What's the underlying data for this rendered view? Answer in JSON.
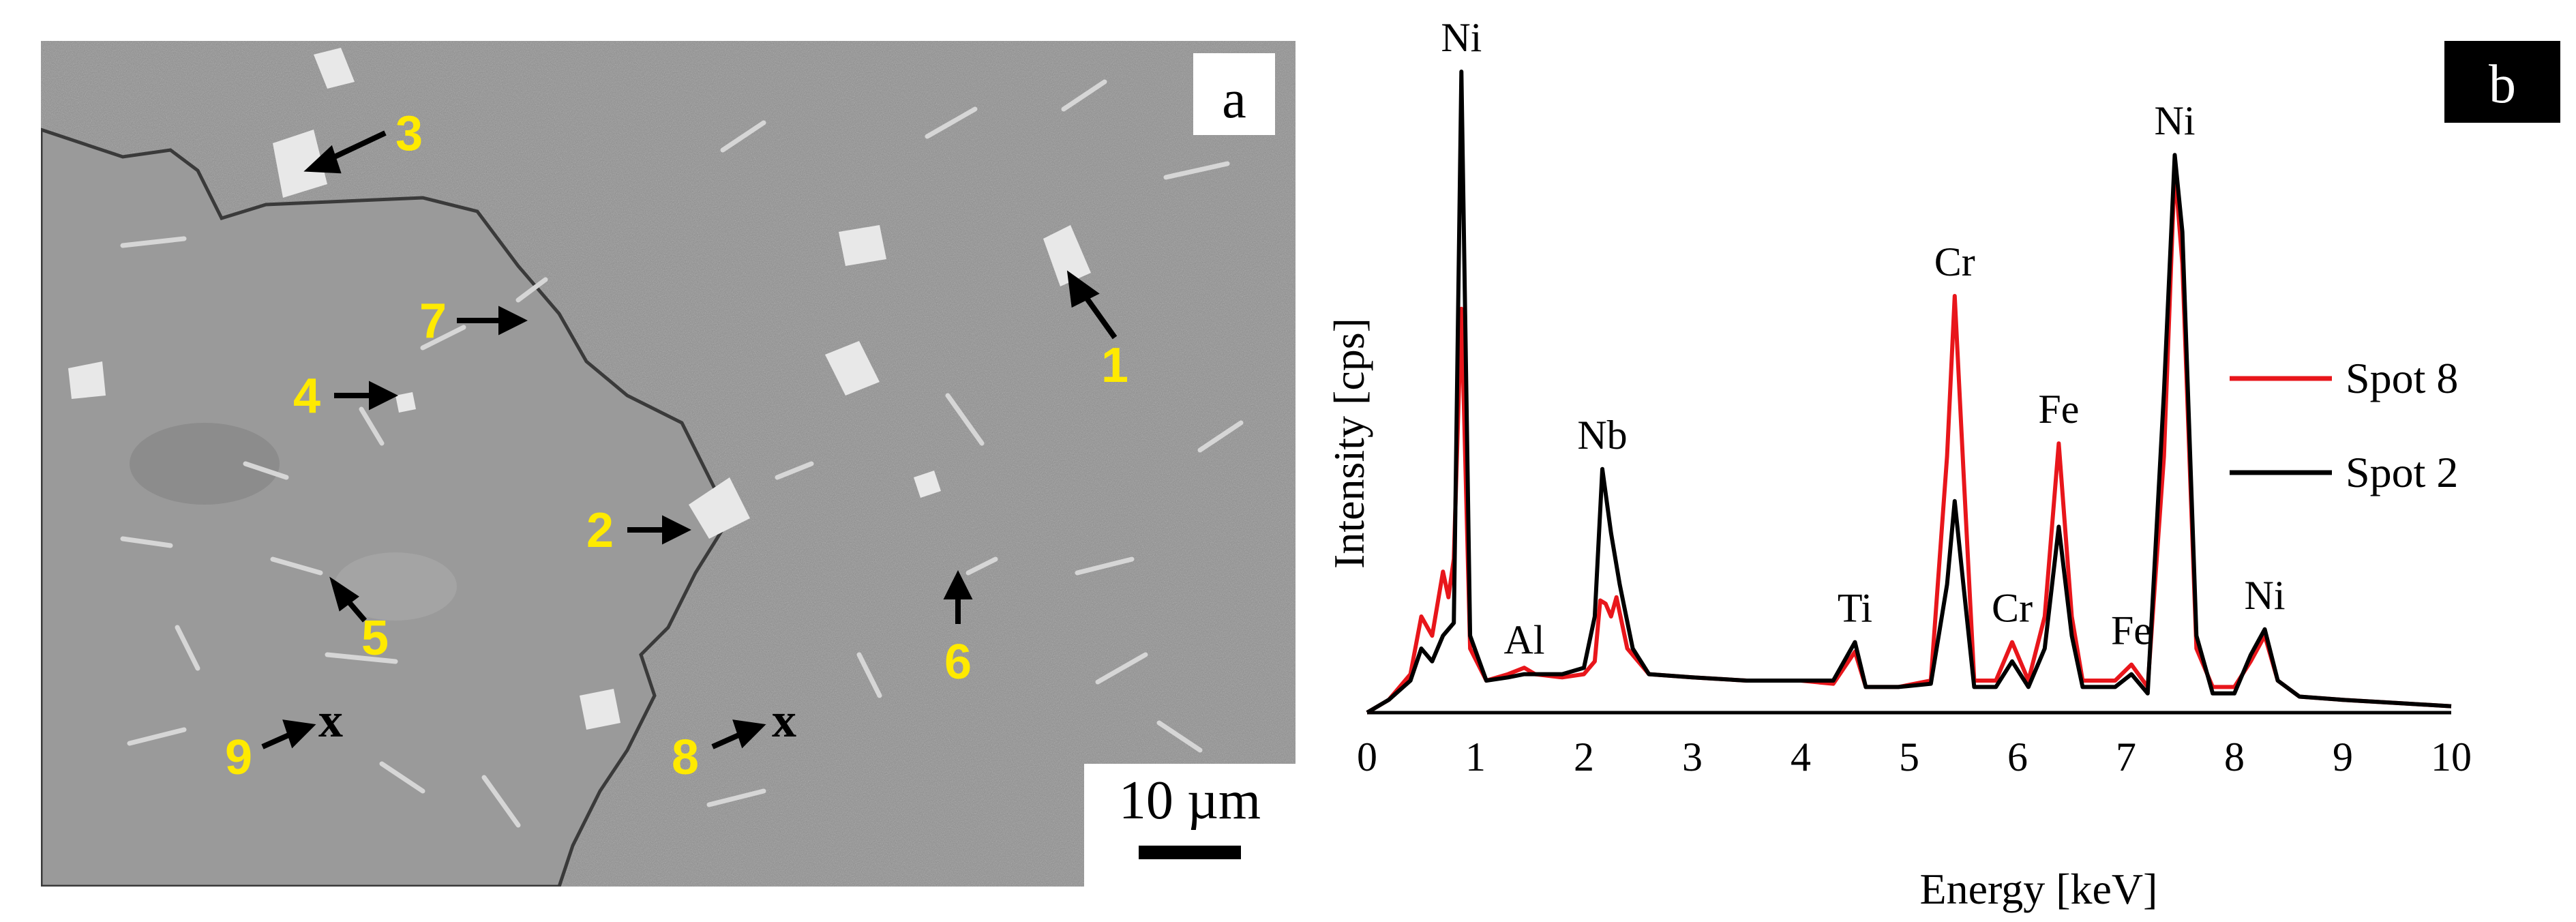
{
  "panel_a": {
    "panel_label": "a",
    "scale_bar_label": "10 µm",
    "markers": [
      {
        "label": "1"
      },
      {
        "label": "2"
      },
      {
        "label": "3"
      },
      {
        "label": "4"
      },
      {
        "label": "5"
      },
      {
        "label": "6"
      },
      {
        "label": "7"
      },
      {
        "label": "8"
      },
      {
        "label": "9"
      }
    ],
    "spot_mark": "x",
    "colors": {
      "marker_label": "#ffea00",
      "arrow": "#000000"
    }
  },
  "chart_data": {
    "type": "line",
    "panel_label": "b",
    "xlabel": "Energy [keV]",
    "ylabel": "Intensity [cps]",
    "xlim": [
      0,
      10
    ],
    "x_ticks": [
      "0",
      "1",
      "2",
      "3",
      "4",
      "5",
      "6",
      "7",
      "8",
      "9",
      "10"
    ],
    "ylim": [
      0,
      100
    ],
    "grid": false,
    "legend_position": "right",
    "series": [
      {
        "name": "Spot 8",
        "color": "#e8161b",
        "points": [
          [
            0.0,
            0
          ],
          [
            0.2,
            2
          ],
          [
            0.4,
            6
          ],
          [
            0.5,
            15
          ],
          [
            0.6,
            12
          ],
          [
            0.7,
            22
          ],
          [
            0.75,
            18
          ],
          [
            0.8,
            24
          ],
          [
            0.87,
            63
          ],
          [
            0.95,
            10
          ],
          [
            1.1,
            5
          ],
          [
            1.3,
            6
          ],
          [
            1.45,
            7
          ],
          [
            1.55,
            6
          ],
          [
            1.8,
            5.5
          ],
          [
            2.0,
            6
          ],
          [
            2.1,
            8
          ],
          [
            2.15,
            17.5
          ],
          [
            2.2,
            17
          ],
          [
            2.25,
            15
          ],
          [
            2.3,
            18
          ],
          [
            2.4,
            10
          ],
          [
            2.6,
            6
          ],
          [
            3.0,
            5.5
          ],
          [
            3.5,
            5
          ],
          [
            4.0,
            5
          ],
          [
            4.3,
            4.5
          ],
          [
            4.5,
            9.5
          ],
          [
            4.6,
            4
          ],
          [
            4.9,
            4
          ],
          [
            5.2,
            5
          ],
          [
            5.35,
            40
          ],
          [
            5.42,
            65
          ],
          [
            5.5,
            38
          ],
          [
            5.6,
            5
          ],
          [
            5.8,
            5
          ],
          [
            5.95,
            11
          ],
          [
            6.1,
            5
          ],
          [
            6.25,
            15
          ],
          [
            6.38,
            42
          ],
          [
            6.5,
            15
          ],
          [
            6.6,
            5
          ],
          [
            6.9,
            5
          ],
          [
            7.05,
            7.5
          ],
          [
            7.2,
            4
          ],
          [
            7.35,
            40
          ],
          [
            7.45,
            85
          ],
          [
            7.52,
            70
          ],
          [
            7.65,
            10
          ],
          [
            7.8,
            4
          ],
          [
            8.0,
            4
          ],
          [
            8.15,
            8
          ],
          [
            8.28,
            12
          ],
          [
            8.4,
            5
          ],
          [
            8.6,
            2.5
          ],
          [
            9.0,
            2
          ],
          [
            9.5,
            1.5
          ],
          [
            10.0,
            1
          ]
        ]
      },
      {
        "name": "Spot 2",
        "color": "#000000",
        "points": [
          [
            0.0,
            0
          ],
          [
            0.2,
            2
          ],
          [
            0.4,
            5
          ],
          [
            0.5,
            10
          ],
          [
            0.6,
            8
          ],
          [
            0.7,
            12
          ],
          [
            0.8,
            14
          ],
          [
            0.87,
            100
          ],
          [
            0.95,
            12
          ],
          [
            1.1,
            5
          ],
          [
            1.3,
            5.5
          ],
          [
            1.45,
            6
          ],
          [
            1.55,
            6
          ],
          [
            1.8,
            6
          ],
          [
            2.0,
            7
          ],
          [
            2.1,
            15
          ],
          [
            2.17,
            38
          ],
          [
            2.25,
            28
          ],
          [
            2.33,
            20
          ],
          [
            2.45,
            10
          ],
          [
            2.6,
            6
          ],
          [
            3.0,
            5.5
          ],
          [
            3.5,
            5
          ],
          [
            4.0,
            5
          ],
          [
            4.3,
            5
          ],
          [
            4.5,
            11
          ],
          [
            4.6,
            4
          ],
          [
            4.9,
            4
          ],
          [
            5.2,
            4.5
          ],
          [
            5.35,
            20
          ],
          [
            5.42,
            33
          ],
          [
            5.5,
            20
          ],
          [
            5.6,
            4
          ],
          [
            5.8,
            4
          ],
          [
            5.95,
            8
          ],
          [
            6.1,
            4
          ],
          [
            6.25,
            10
          ],
          [
            6.38,
            29
          ],
          [
            6.5,
            12
          ],
          [
            6.6,
            4
          ],
          [
            6.9,
            4
          ],
          [
            7.05,
            6
          ],
          [
            7.2,
            3
          ],
          [
            7.35,
            50
          ],
          [
            7.45,
            87
          ],
          [
            7.52,
            75
          ],
          [
            7.65,
            12
          ],
          [
            7.8,
            3
          ],
          [
            8.0,
            3
          ],
          [
            8.15,
            9
          ],
          [
            8.28,
            13
          ],
          [
            8.4,
            5
          ],
          [
            8.6,
            2.5
          ],
          [
            9.0,
            2
          ],
          [
            9.5,
            1.5
          ],
          [
            10.0,
            1
          ]
        ]
      }
    ],
    "annotations": [
      {
        "text": "Ni",
        "x": 0.87,
        "y": 100
      },
      {
        "text": "Al",
        "x": 1.45,
        "y": 6
      },
      {
        "text": "Nb",
        "x": 2.17,
        "y": 38
      },
      {
        "text": "Ti",
        "x": 4.5,
        "y": 11
      },
      {
        "text": "Cr",
        "x": 5.42,
        "y": 65
      },
      {
        "text": "Cr",
        "x": 5.95,
        "y": 11
      },
      {
        "text": "Fe",
        "x": 6.38,
        "y": 42
      },
      {
        "text": "Fe",
        "x": 7.05,
        "y": 7.5
      },
      {
        "text": "Ni",
        "x": 7.45,
        "y": 87
      },
      {
        "text": "Ni",
        "x": 8.28,
        "y": 13
      }
    ]
  }
}
